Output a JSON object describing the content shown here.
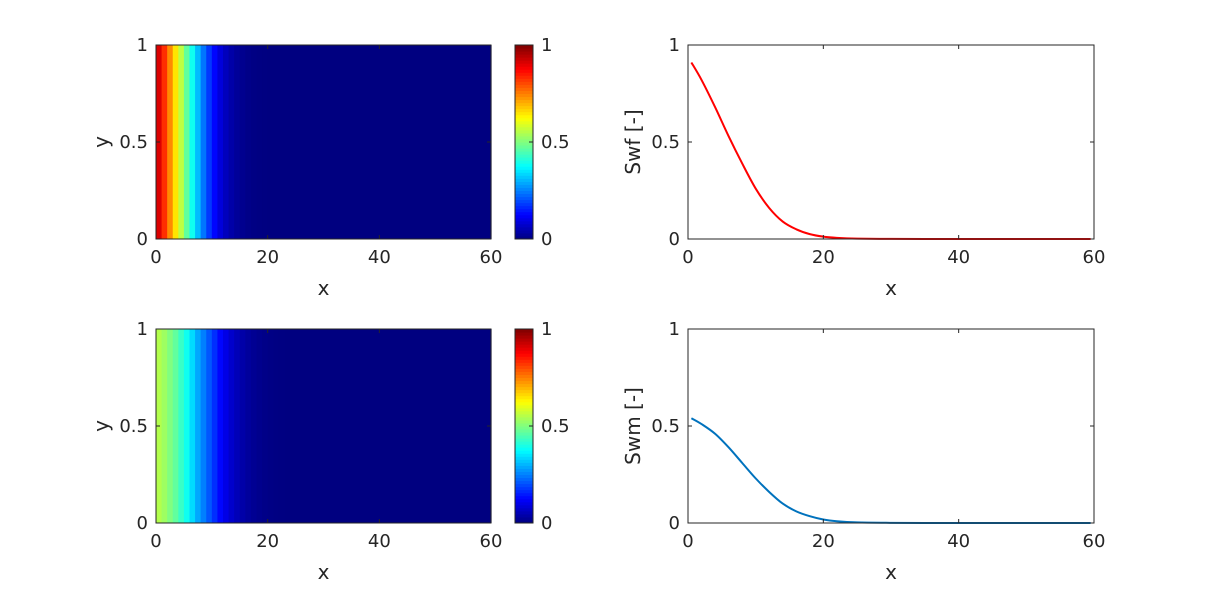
{
  "chart_data": [
    {
      "type": "heatmap",
      "panel": "top-left",
      "xlabel": "x",
      "ylabel": "y",
      "xlim": [
        0,
        60
      ],
      "ylim": [
        0,
        1
      ],
      "xticks": [
        "0",
        "20",
        "40",
        "60"
      ],
      "yticks": [
        "0",
        "0.5",
        "1"
      ],
      "colormap": "jet",
      "clim": [
        0,
        1
      ],
      "colorbar_ticks": [
        "0",
        "0.5",
        "1"
      ],
      "column_width": 1,
      "values": [
        0.91,
        0.83,
        0.74,
        0.65,
        0.56,
        0.47,
        0.39,
        0.31,
        0.24,
        0.18,
        0.13,
        0.09,
        0.06,
        0.04,
        0.025,
        0.015,
        0.008,
        0.004,
        0.002,
        0.001,
        0.0005,
        0,
        0,
        0,
        0,
        0,
        0,
        0,
        0,
        0,
        0,
        0,
        0,
        0,
        0,
        0,
        0,
        0,
        0,
        0,
        0,
        0,
        0,
        0,
        0,
        0,
        0,
        0,
        0,
        0,
        0,
        0,
        0,
        0,
        0,
        0,
        0,
        0,
        0,
        0
      ]
    },
    {
      "type": "line",
      "panel": "top-right",
      "xlabel": "x",
      "ylabel": "Swf [-]",
      "xlim": [
        0,
        60
      ],
      "ylim": [
        0,
        1
      ],
      "xticks": [
        "0",
        "20",
        "40",
        "60"
      ],
      "yticks": [
        "0",
        "0.5",
        "1"
      ],
      "series": [
        {
          "color": "#ff0000",
          "x": [
            0.5,
            2,
            4,
            6,
            8,
            10,
            12,
            14,
            16,
            18,
            20,
            22,
            25,
            30,
            35,
            40,
            45,
            50,
            55,
            59.5
          ],
          "y": [
            0.91,
            0.82,
            0.68,
            0.53,
            0.39,
            0.26,
            0.16,
            0.09,
            0.05,
            0.025,
            0.012,
            0.006,
            0.002,
            0.0005,
            0,
            0,
            0,
            0,
            0,
            0
          ]
        }
      ]
    },
    {
      "type": "heatmap",
      "panel": "bottom-left",
      "xlabel": "x",
      "ylabel": "y",
      "xlim": [
        0,
        60
      ],
      "ylim": [
        0,
        1
      ],
      "xticks": [
        "0",
        "20",
        "40",
        "60"
      ],
      "yticks": [
        "0",
        "0.5",
        "1"
      ],
      "colormap": "jet",
      "clim": [
        0,
        1
      ],
      "colorbar_ticks": [
        "0",
        "0.5",
        "1"
      ],
      "column_width": 1,
      "values": [
        0.55,
        0.53,
        0.5,
        0.47,
        0.43,
        0.39,
        0.34,
        0.29,
        0.25,
        0.21,
        0.17,
        0.13,
        0.1,
        0.075,
        0.055,
        0.04,
        0.028,
        0.019,
        0.013,
        0.008,
        0.005,
        0.003,
        0.002,
        0.001,
        0,
        0,
        0,
        0,
        0,
        0,
        0,
        0,
        0,
        0,
        0,
        0,
        0,
        0,
        0,
        0,
        0,
        0,
        0,
        0,
        0,
        0,
        0,
        0,
        0,
        0,
        0,
        0,
        0,
        0,
        0,
        0,
        0,
        0,
        0,
        0
      ]
    },
    {
      "type": "line",
      "panel": "bottom-right",
      "xlabel": "x",
      "ylabel": "Swm [-]",
      "xlim": [
        0,
        60
      ],
      "ylim": [
        0,
        1
      ],
      "xticks": [
        "0",
        "20",
        "40",
        "60"
      ],
      "yticks": [
        "0",
        "0.5",
        "1"
      ],
      "series": [
        {
          "color": "#0072bd",
          "x": [
            0.5,
            2,
            4,
            6,
            8,
            10,
            12,
            14,
            16,
            18,
            20,
            22,
            25,
            30,
            35,
            40,
            45,
            50,
            55,
            59.5
          ],
          "y": [
            0.54,
            0.51,
            0.46,
            0.39,
            0.31,
            0.23,
            0.16,
            0.1,
            0.06,
            0.035,
            0.018,
            0.009,
            0.003,
            0.0008,
            0,
            0,
            0,
            0,
            0,
            0
          ]
        }
      ]
    }
  ]
}
